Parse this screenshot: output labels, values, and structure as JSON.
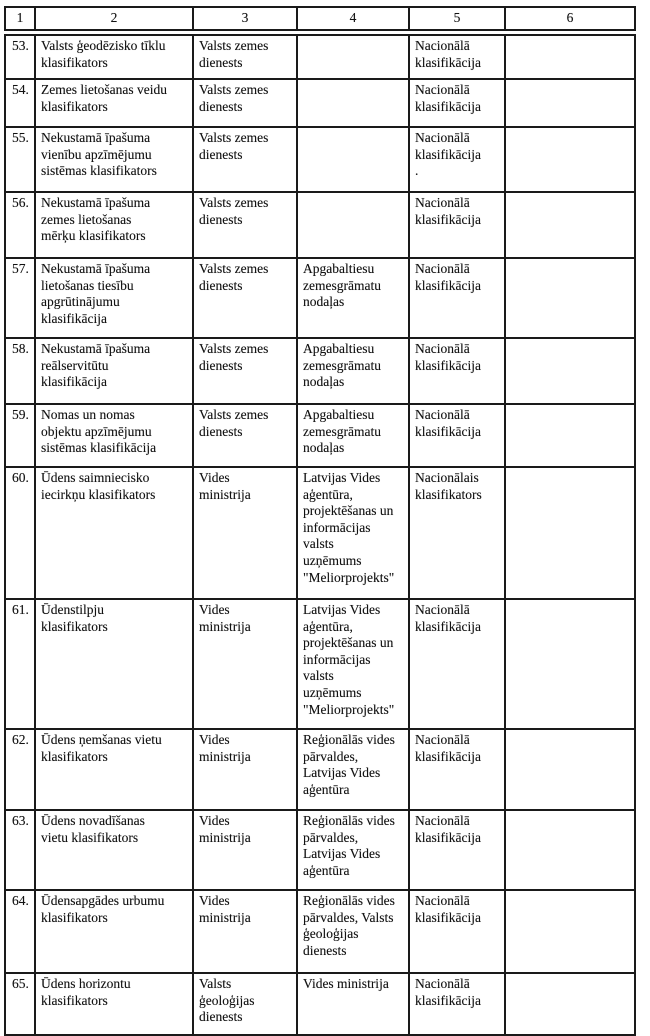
{
  "table": {
    "headers": [
      "1",
      "2",
      "3",
      "4",
      "5",
      "6"
    ],
    "rows": [
      {
        "cells": [
          "53.",
          "Valsts ģeodēzisko tīklu\nklasifikators",
          "Valsts zemes\ndienests",
          "",
          "Nacionālā\nklasifikācija",
          ""
        ]
      },
      {
        "cells": [
          "54.",
          "Zemes lietošanas veidu\nklasifikators",
          "Valsts zemes\ndienests",
          "",
          "Nacionālā\nklasifikācija",
          ""
        ]
      },
      {
        "cells": [
          "55.",
          "Nekustamā īpašuma\nvienību apzīmējumu\nsistēmas klasifikators",
          "Valsts zemes\ndienests",
          "",
          "Nacionālā\nklasifikācija\n.",
          ""
        ]
      },
      {
        "cells": [
          "56.",
          "Nekustamā īpašuma\nzemes lietošanas\nmērķu klasifikators",
          "Valsts zemes\ndienests",
          "",
          "Nacionālā\nklasifikācija",
          ""
        ]
      },
      {
        "cells": [
          "57.",
          "Nekustamā īpašuma\nlietošanas tiesību\napgrūtinājumu\nklasifikācija",
          "Valsts zemes\ndienests",
          "Apgabaltiesu\nzemesgrāmatu\nnodaļas",
          "Nacionālā\nklasifikācija",
          ""
        ]
      },
      {
        "cells": [
          "58.",
          "Nekustamā īpašuma\nreālservitūtu\nklasifikācija",
          "Valsts zemes\ndienests",
          "Apgabaltiesu\nzemesgrāmatu\nnodaļas",
          "Nacionālā\nklasifikācija",
          ""
        ]
      },
      {
        "cells": [
          "59.",
          "Nomas un nomas\nobjektu apzīmējumu\nsistēmas klasifikācija",
          "Valsts zemes\ndienests",
          "Apgabaltiesu\nzemesgrāmatu\nnodaļas",
          "Nacionālā\nklasifikācija",
          ""
        ]
      },
      {
        "cells": [
          "60.",
          "Ūdens saimniecisko\niecirkņu klasifikators",
          "Vides\nministrija",
          "Latvijas Vides\naģentūra,\nprojektēšanas un\ninformācijas\nvalsts\nuzņēmums\n\"Meliorprojekts\"",
          "Nacionālais\nklasifikators",
          ""
        ]
      },
      {
        "cells": [
          "61.",
          "Ūdenstilpju\nklasifikators",
          "Vides\nministrija",
          "Latvijas Vides\naģentūra,\nprojektēšanas un\ninformācijas\nvalsts\nuzņēmums\n\"Meliorprojekts\"",
          "Nacionālā\nklasifikācija",
          ""
        ]
      },
      {
        "cells": [
          "62.",
          "Ūdens ņemšanas vietu\nklasifikators",
          "Vides\nministrija",
          "Reģionālās vides\npārvaldes,\nLatvijas Vides\naģentūra",
          "Nacionālā\nklasifikācija",
          ""
        ]
      },
      {
        "cells": [
          "63.",
          "Ūdens novadīšanas\nvietu klasifikators",
          "Vides\nministrija",
          "Reģionālās vides\npārvaldes,\nLatvijas Vides\naģentūra",
          "Nacionālā\nklasifikācija",
          ""
        ]
      },
      {
        "cells": [
          "64.",
          "Ūdensapgādes urbumu\nklasifikators",
          "Vides\nministrija",
          "Reģionālās vides\npārvaldes, Valsts\nģeoloģijas\ndienests",
          "Nacionālā\nklasifikācija",
          ""
        ]
      },
      {
        "cells": [
          "65.",
          "Ūdens horizontu\nklasifikators",
          "Valsts\nģeoloģijas\ndienests",
          "Vides ministrija",
          "Nacionālā\nklasifikācija",
          ""
        ]
      }
    ]
  }
}
